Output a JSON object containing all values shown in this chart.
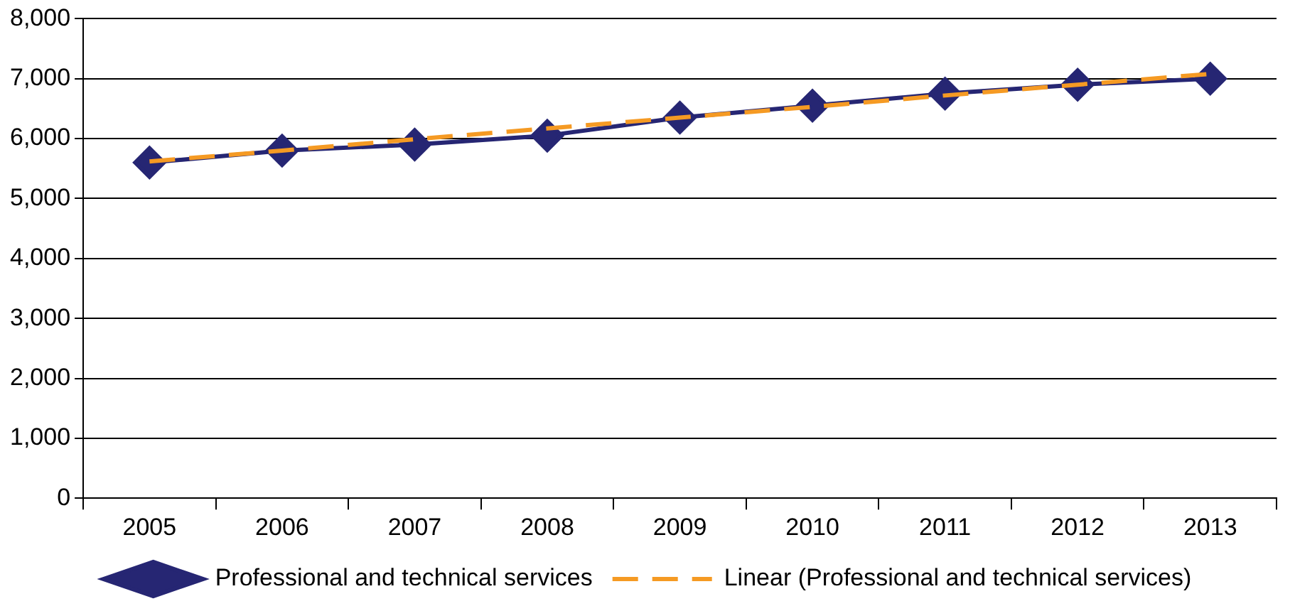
{
  "chart_data": {
    "type": "line",
    "categories": [
      "2005",
      "2006",
      "2007",
      "2008",
      "2009",
      "2010",
      "2011",
      "2012",
      "2013"
    ],
    "series": [
      {
        "name": "Professional and technical services",
        "color": "#262673",
        "values": [
          5600,
          5800,
          5900,
          6050,
          6350,
          6550,
          6750,
          6900,
          7000
        ],
        "marker": "diamond",
        "line_style": "solid"
      },
      {
        "name": "Linear (Professional and technical services)",
        "color": "#f59a23",
        "values": [
          5620,
          5800,
          5990,
          6170,
          6350,
          6530,
          6720,
          6900,
          7080
        ],
        "marker": "none",
        "line_style": "dashed"
      }
    ],
    "ylim": [
      0,
      8000
    ],
    "yticks": [
      0,
      {
        "value": 1000,
        "label": "1,000"
      },
      {
        "value": 2000,
        "label": "2,000"
      },
      {
        "value": 3000,
        "label": "3,000"
      },
      {
        "value": 4000,
        "label": "4,000"
      },
      {
        "value": 5000,
        "label": "5,000"
      },
      {
        "value": 6000,
        "label": "6,000"
      },
      {
        "value": 7000,
        "label": "7,000"
      },
      {
        "value": 8000,
        "label": "8,000"
      }
    ],
    "grid": "y",
    "legend": "bottom"
  }
}
